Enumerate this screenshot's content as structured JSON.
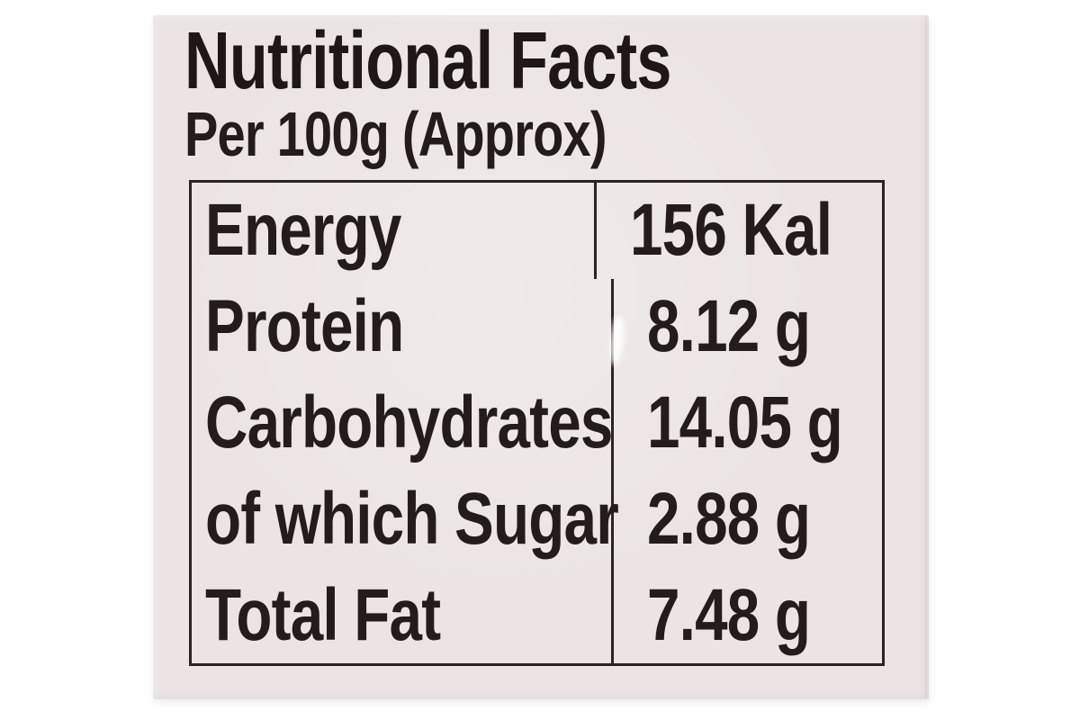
{
  "label": {
    "title": "Nutritional Facts",
    "subtitle": "Per 100g (Approx)",
    "table": {
      "rows": [
        {
          "name": "Energy",
          "value": "156 Kal"
        },
        {
          "name": "Protein",
          "value": "8.12 g"
        },
        {
          "name": "Carbohydrates",
          "value": "14.05 g"
        },
        {
          "name": "of which Sugar",
          "value": "2.88 g"
        },
        {
          "name": "Total Fat",
          "value": "7.48 g"
        }
      ]
    },
    "colors": {
      "page_background": "#ffffff",
      "label_background": "#ece4e4",
      "ink_text": "#241b1b",
      "table_border": "#2b2222"
    }
  }
}
